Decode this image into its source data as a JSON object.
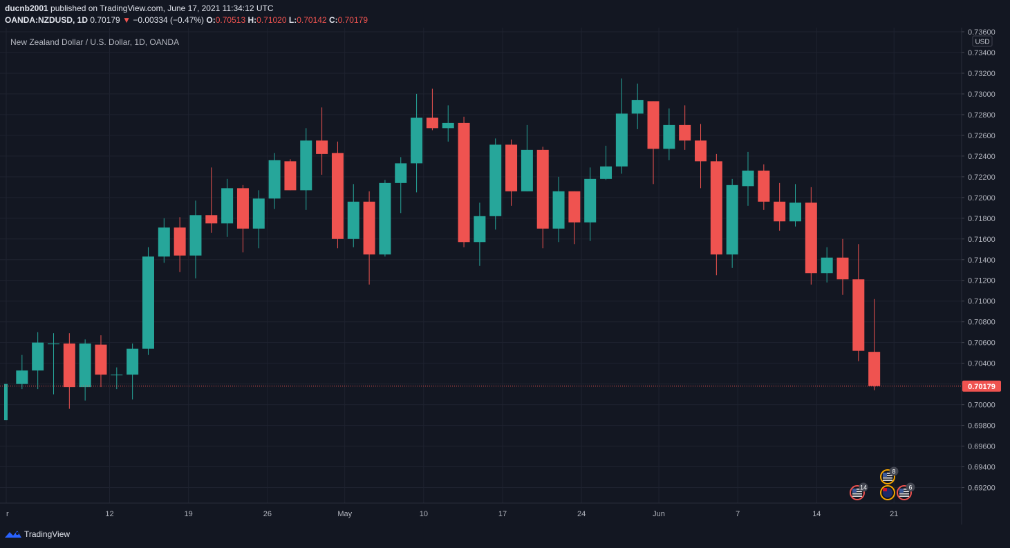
{
  "header": {
    "author": "ducnb2001",
    "published_text": "published on TradingView.com, June 17, 2021 11:34:12 UTC",
    "symbol": "OANDA:NZDUSD, 1D",
    "last": "0.70179",
    "change": "−0.00334 (−0.47%)",
    "open_label": "O:",
    "open": "0.70513",
    "high_label": "H:",
    "high": "0.71020",
    "low_label": "L:",
    "low": "0.70142",
    "close_label": "C:",
    "close": "0.70179"
  },
  "footer": {
    "brand": "TradingView"
  },
  "colors": {
    "up": "#26a69a",
    "down": "#ef5350",
    "bg": "#131722",
    "grid": "#1f2330",
    "text": "#b2b5be"
  },
  "chart_data": {
    "type": "candlestick",
    "title": "New Zealand Dollar / U.S. Dollar, 1D, OANDA",
    "currency_label": "USD",
    "ylim": [
      0.6905,
      0.7364
    ],
    "y_ticks": [
      "0.73600",
      "0.73400",
      "0.73200",
      "0.73000",
      "0.72800",
      "0.72600",
      "0.72400",
      "0.72200",
      "0.72000",
      "0.71800",
      "0.71600",
      "0.71400",
      "0.71200",
      "0.71000",
      "0.70800",
      "0.70600",
      "0.70400",
      "0.70200",
      "0.70000",
      "0.69800",
      "0.69600",
      "0.69400",
      "0.69200"
    ],
    "x_labels": [
      "r",
      "12",
      "19",
      "26",
      "May",
      "10",
      "17",
      "24",
      "Jun",
      "7",
      "14",
      "21"
    ],
    "last_price": "0.70179",
    "candles": [
      {
        "date": "2021-03-31",
        "o": 0.6985,
        "h": 0.702,
        "l": 0.6985,
        "c": 0.702
      },
      {
        "date": "2021-04-01",
        "o": 0.702,
        "h": 0.7048,
        "l": 0.7015,
        "c": 0.7033
      },
      {
        "date": "2021-04-02",
        "o": 0.7033,
        "h": 0.707,
        "l": 0.7015,
        "c": 0.706
      },
      {
        "date": "2021-04-05",
        "o": 0.7059,
        "h": 0.7069,
        "l": 0.701,
        "c": 0.7059
      },
      {
        "date": "2021-04-06",
        "o": 0.7059,
        "h": 0.7069,
        "l": 0.6996,
        "c": 0.7017
      },
      {
        "date": "2021-04-07",
        "o": 0.7017,
        "h": 0.7063,
        "l": 0.7004,
        "c": 0.7059
      },
      {
        "date": "2021-04-08",
        "o": 0.7058,
        "h": 0.7067,
        "l": 0.7017,
        "c": 0.7029
      },
      {
        "date": "2021-04-09",
        "o": 0.7029,
        "h": 0.7036,
        "l": 0.7015,
        "c": 0.7029
      },
      {
        "date": "2021-04-12",
        "o": 0.7029,
        "h": 0.7059,
        "l": 0.7005,
        "c": 0.7054
      },
      {
        "date": "2021-04-13",
        "o": 0.7054,
        "h": 0.7152,
        "l": 0.7048,
        "c": 0.7143
      },
      {
        "date": "2021-04-14",
        "o": 0.7143,
        "h": 0.718,
        "l": 0.7137,
        "c": 0.7171
      },
      {
        "date": "2021-04-15",
        "o": 0.7171,
        "h": 0.7181,
        "l": 0.7128,
        "c": 0.7144
      },
      {
        "date": "2021-04-16",
        "o": 0.7144,
        "h": 0.7197,
        "l": 0.7122,
        "c": 0.7183
      },
      {
        "date": "2021-04-19",
        "o": 0.7183,
        "h": 0.7229,
        "l": 0.7166,
        "c": 0.7175
      },
      {
        "date": "2021-04-20",
        "o": 0.7175,
        "h": 0.7218,
        "l": 0.7162,
        "c": 0.7209
      },
      {
        "date": "2021-04-21",
        "o": 0.7209,
        "h": 0.7212,
        "l": 0.7147,
        "c": 0.717
      },
      {
        "date": "2021-04-22",
        "o": 0.717,
        "h": 0.7207,
        "l": 0.7151,
        "c": 0.7199
      },
      {
        "date": "2021-04-23",
        "o": 0.7199,
        "h": 0.7243,
        "l": 0.7189,
        "c": 0.7236
      },
      {
        "date": "2021-04-26",
        "o": 0.7235,
        "h": 0.7237,
        "l": 0.7207,
        "c": 0.7207
      },
      {
        "date": "2021-04-27",
        "o": 0.7207,
        "h": 0.7267,
        "l": 0.7188,
        "c": 0.7255
      },
      {
        "date": "2021-04-28",
        "o": 0.7255,
        "h": 0.7287,
        "l": 0.7222,
        "c": 0.7242
      },
      {
        "date": "2021-04-29",
        "o": 0.7243,
        "h": 0.7254,
        "l": 0.7151,
        "c": 0.716
      },
      {
        "date": "2021-04-30",
        "o": 0.716,
        "h": 0.7213,
        "l": 0.7152,
        "c": 0.7196
      },
      {
        "date": "2021-05-03",
        "o": 0.7196,
        "h": 0.7206,
        "l": 0.7116,
        "c": 0.7145
      },
      {
        "date": "2021-05-04",
        "o": 0.7145,
        "h": 0.7217,
        "l": 0.7143,
        "c": 0.7214
      },
      {
        "date": "2021-05-05",
        "o": 0.7214,
        "h": 0.7239,
        "l": 0.7185,
        "c": 0.7233
      },
      {
        "date": "2021-05-06",
        "o": 0.7233,
        "h": 0.73,
        "l": 0.7205,
        "c": 0.7277
      },
      {
        "date": "2021-05-07",
        "o": 0.7277,
        "h": 0.7305,
        "l": 0.7265,
        "c": 0.7267
      },
      {
        "date": "2021-05-10",
        "o": 0.7267,
        "h": 0.7289,
        "l": 0.7254,
        "c": 0.7272
      },
      {
        "date": "2021-05-11",
        "o": 0.7272,
        "h": 0.7278,
        "l": 0.7152,
        "c": 0.7157
      },
      {
        "date": "2021-05-12",
        "o": 0.7157,
        "h": 0.7195,
        "l": 0.7134,
        "c": 0.7182
      },
      {
        "date": "2021-05-13",
        "o": 0.7182,
        "h": 0.7257,
        "l": 0.7169,
        "c": 0.7251
      },
      {
        "date": "2021-05-14",
        "o": 0.7251,
        "h": 0.7256,
        "l": 0.7192,
        "c": 0.7206
      },
      {
        "date": "2021-05-17",
        "o": 0.7206,
        "h": 0.727,
        "l": 0.7206,
        "c": 0.7246
      },
      {
        "date": "2021-05-18",
        "o": 0.7246,
        "h": 0.7249,
        "l": 0.7151,
        "c": 0.717
      },
      {
        "date": "2021-05-19",
        "o": 0.717,
        "h": 0.722,
        "l": 0.7157,
        "c": 0.7206
      },
      {
        "date": "2021-05-20",
        "o": 0.7206,
        "h": 0.7206,
        "l": 0.7155,
        "c": 0.7176
      },
      {
        "date": "2021-05-21",
        "o": 0.7176,
        "h": 0.7229,
        "l": 0.7158,
        "c": 0.7218
      },
      {
        "date": "2021-05-24",
        "o": 0.7218,
        "h": 0.725,
        "l": 0.7217,
        "c": 0.723
      },
      {
        "date": "2021-05-25",
        "o": 0.723,
        "h": 0.7315,
        "l": 0.7223,
        "c": 0.7281
      },
      {
        "date": "2021-05-26",
        "o": 0.7281,
        "h": 0.731,
        "l": 0.7266,
        "c": 0.7294
      },
      {
        "date": "2021-05-27",
        "o": 0.7293,
        "h": 0.7293,
        "l": 0.7213,
        "c": 0.7247
      },
      {
        "date": "2021-05-28",
        "o": 0.7247,
        "h": 0.7286,
        "l": 0.7236,
        "c": 0.727
      },
      {
        "date": "2021-05-31",
        "o": 0.727,
        "h": 0.7289,
        "l": 0.7246,
        "c": 0.7255
      },
      {
        "date": "2021-06-01",
        "o": 0.7255,
        "h": 0.7271,
        "l": 0.7209,
        "c": 0.7235
      },
      {
        "date": "2021-06-02",
        "o": 0.7235,
        "h": 0.7242,
        "l": 0.7125,
        "c": 0.7145
      },
      {
        "date": "2021-06-03",
        "o": 0.7145,
        "h": 0.7218,
        "l": 0.7132,
        "c": 0.7212
      },
      {
        "date": "2021-06-04",
        "o": 0.7211,
        "h": 0.7244,
        "l": 0.7192,
        "c": 0.7226
      },
      {
        "date": "2021-06-07",
        "o": 0.7226,
        "h": 0.7232,
        "l": 0.7188,
        "c": 0.7196
      },
      {
        "date": "2021-06-08",
        "o": 0.7196,
        "h": 0.7214,
        "l": 0.7168,
        "c": 0.7177
      },
      {
        "date": "2021-06-09",
        "o": 0.7177,
        "h": 0.7213,
        "l": 0.7172,
        "c": 0.7195
      },
      {
        "date": "2021-06-10",
        "o": 0.7195,
        "h": 0.721,
        "l": 0.7116,
        "c": 0.7127
      },
      {
        "date": "2021-06-11",
        "o": 0.7127,
        "h": 0.7152,
        "l": 0.7118,
        "c": 0.7142
      },
      {
        "date": "2021-06-14",
        "o": 0.7142,
        "h": 0.716,
        "l": 0.7106,
        "c": 0.7121
      },
      {
        "date": "2021-06-15",
        "o": 0.7121,
        "h": 0.7155,
        "l": 0.7042,
        "c": 0.7052
      },
      {
        "date": "2021-06-16",
        "o": 0.7051,
        "h": 0.7102,
        "l": 0.7014,
        "c": 0.7018
      }
    ],
    "events": [
      {
        "label": "14",
        "flag": "us",
        "position": "bottom"
      },
      {
        "label": "8",
        "flag": "us",
        "position": "upper"
      },
      {
        "label": "",
        "flag": "nz",
        "position": "bottom"
      },
      {
        "label": "6",
        "flag": "us",
        "position": "bottom"
      }
    ]
  }
}
